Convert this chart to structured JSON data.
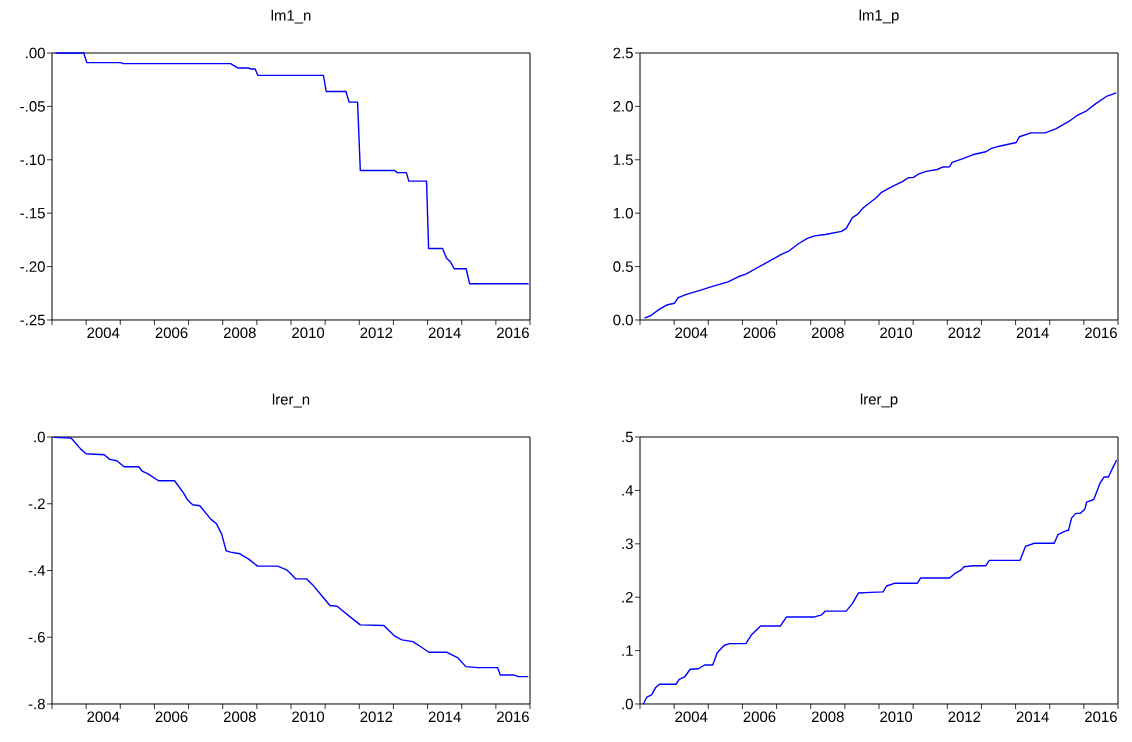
{
  "chart_data": [
    {
      "type": "line",
      "title": "lm1_n",
      "color": "#0000ff",
      "xlim": [
        2003,
        2017
      ],
      "ylim": [
        -0.25,
        0
      ],
      "xticks": [
        {
          "value": 2003,
          "label": null
        },
        {
          "value": 2004,
          "label": null
        },
        {
          "value": 2005,
          "label": null
        },
        {
          "value": 2006,
          "label": null
        },
        {
          "value": 2007,
          "label": null
        },
        {
          "value": 2008,
          "label": null
        },
        {
          "value": 2009,
          "label": null
        },
        {
          "value": 2010,
          "label": null
        },
        {
          "value": 2011,
          "label": null
        },
        {
          "value": 2012,
          "label": null
        },
        {
          "value": 2013,
          "label": null
        },
        {
          "value": 2014,
          "label": null
        },
        {
          "value": 2015,
          "label": null
        },
        {
          "value": 2016,
          "label": null
        },
        {
          "value": 2017,
          "label": null
        },
        {
          "value": 2004.5,
          "label": "2004"
        },
        {
          "value": 2006.5,
          "label": "2006"
        },
        {
          "value": 2008.5,
          "label": "2008"
        },
        {
          "value": 2010.5,
          "label": "2010"
        },
        {
          "value": 2012.5,
          "label": "2012"
        },
        {
          "value": 2014.5,
          "label": "2014"
        },
        {
          "value": 2016.5,
          "label": "2016"
        }
      ],
      "yticks": [
        {
          "value": 0,
          "label": ".00"
        },
        {
          "value": -0.05,
          "label": "-.05"
        },
        {
          "value": -0.1,
          "label": "-.10"
        },
        {
          "value": -0.15,
          "label": "-.15"
        },
        {
          "value": -0.2,
          "label": "-.20"
        },
        {
          "value": -0.25,
          "label": "-.25"
        }
      ],
      "x": [
        2003.1,
        2003.93,
        2004.02,
        2005.0,
        2005.1,
        2008.23,
        2008.44,
        2008.76,
        2008.83,
        2008.95,
        2009.03,
        2010.95,
        2011.03,
        2011.61,
        2011.7,
        2011.95,
        2012.03,
        2013.04,
        2013.11,
        2013.38,
        2013.45,
        2013.97,
        2014.03,
        2014.44,
        2014.55,
        2014.68,
        2014.78,
        2015.13,
        2015.23,
        2016.96
      ],
      "values": [
        0,
        0,
        -0.009,
        -0.009,
        -0.01,
        -0.01,
        -0.014,
        -0.014,
        -0.015,
        -0.015,
        -0.021,
        -0.021,
        -0.036,
        -0.036,
        -0.046,
        -0.046,
        -0.11,
        -0.11,
        -0.112,
        -0.112,
        -0.12,
        -0.12,
        -0.183,
        -0.183,
        -0.192,
        -0.196,
        -0.202,
        -0.202,
        -0.216,
        -0.216
      ]
    },
    {
      "type": "line",
      "title": "lm1_p",
      "color": "#0000ff",
      "xlim": [
        2003,
        2017
      ],
      "ylim": [
        0,
        2.5
      ],
      "xticks": [
        {
          "value": 2003,
          "label": null
        },
        {
          "value": 2004,
          "label": null
        },
        {
          "value": 2005,
          "label": null
        },
        {
          "value": 2006,
          "label": null
        },
        {
          "value": 2007,
          "label": null
        },
        {
          "value": 2008,
          "label": null
        },
        {
          "value": 2009,
          "label": null
        },
        {
          "value": 2010,
          "label": null
        },
        {
          "value": 2011,
          "label": null
        },
        {
          "value": 2012,
          "label": null
        },
        {
          "value": 2013,
          "label": null
        },
        {
          "value": 2014,
          "label": null
        },
        {
          "value": 2015,
          "label": null
        },
        {
          "value": 2016,
          "label": null
        },
        {
          "value": 2017,
          "label": null
        },
        {
          "value": 2004.5,
          "label": "2004"
        },
        {
          "value": 2006.5,
          "label": "2006"
        },
        {
          "value": 2008.5,
          "label": "2008"
        },
        {
          "value": 2010.5,
          "label": "2010"
        },
        {
          "value": 2012.5,
          "label": "2012"
        },
        {
          "value": 2014.5,
          "label": "2014"
        },
        {
          "value": 2016.5,
          "label": "2016"
        }
      ],
      "yticks": [
        {
          "value": 0,
          "label": "0.0"
        },
        {
          "value": 0.5,
          "label": "0.5"
        },
        {
          "value": 1,
          "label": "1.0"
        },
        {
          "value": 1.5,
          "label": "1.5"
        },
        {
          "value": 2,
          "label": "2.0"
        },
        {
          "value": 2.5,
          "label": "2.5"
        }
      ],
      "x": [
        2003.13,
        2003.31,
        2003.55,
        2003.78,
        2004.01,
        2004.12,
        2004.36,
        2004.78,
        2005.05,
        2005.58,
        2005.89,
        2006.1,
        2006.63,
        2007.14,
        2007.37,
        2007.64,
        2007.9,
        2008.11,
        2008.43,
        2008.9,
        2009.04,
        2009.22,
        2009.38,
        2009.54,
        2009.91,
        2010.06,
        2010.38,
        2010.7,
        2010.86,
        2011.01,
        2011.15,
        2011.38,
        2011.7,
        2011.86,
        2012.07,
        2012.14,
        2012.44,
        2012.76,
        2013.13,
        2013.28,
        2013.49,
        2014.02,
        2014.11,
        2014.45,
        2014.87,
        2015.19,
        2015.56,
        2015.82,
        2016.08,
        2016.35,
        2016.66,
        2016.95
      ],
      "values": [
        0.017,
        0.04,
        0.097,
        0.14,
        0.157,
        0.21,
        0.24,
        0.28,
        0.307,
        0.357,
        0.407,
        0.43,
        0.524,
        0.614,
        0.648,
        0.714,
        0.764,
        0.788,
        0.8,
        0.83,
        0.858,
        0.958,
        0.991,
        1.051,
        1.142,
        1.192,
        1.248,
        1.298,
        1.332,
        1.335,
        1.365,
        1.392,
        1.409,
        1.432,
        1.435,
        1.475,
        1.508,
        1.549,
        1.575,
        1.605,
        1.625,
        1.662,
        1.716,
        1.752,
        1.752,
        1.792,
        1.859,
        1.919,
        1.959,
        2.026,
        2.093,
        2.126
      ]
    },
    {
      "type": "line",
      "title": "lrer_n",
      "color": "#0000ff",
      "xlim": [
        2003,
        2017
      ],
      "ylim": [
        -0.8,
        0
      ],
      "xticks": [
        {
          "value": 2003,
          "label": null
        },
        {
          "value": 2004,
          "label": null
        },
        {
          "value": 2005,
          "label": null
        },
        {
          "value": 2006,
          "label": null
        },
        {
          "value": 2007,
          "label": null
        },
        {
          "value": 2008,
          "label": null
        },
        {
          "value": 2009,
          "label": null
        },
        {
          "value": 2010,
          "label": null
        },
        {
          "value": 2011,
          "label": null
        },
        {
          "value": 2012,
          "label": null
        },
        {
          "value": 2013,
          "label": null
        },
        {
          "value": 2014,
          "label": null
        },
        {
          "value": 2015,
          "label": null
        },
        {
          "value": 2016,
          "label": null
        },
        {
          "value": 2017,
          "label": null
        },
        {
          "value": 2004.5,
          "label": "2004"
        },
        {
          "value": 2006.5,
          "label": "2006"
        },
        {
          "value": 2008.5,
          "label": "2008"
        },
        {
          "value": 2010.5,
          "label": "2010"
        },
        {
          "value": 2012.5,
          "label": "2012"
        },
        {
          "value": 2014.5,
          "label": "2014"
        },
        {
          "value": 2016.5,
          "label": "2016"
        }
      ],
      "yticks": [
        {
          "value": 0,
          "label": ".0"
        },
        {
          "value": -0.2,
          "label": "-.2"
        },
        {
          "value": -0.4,
          "label": "-.4"
        },
        {
          "value": -0.6,
          "label": "-.6"
        },
        {
          "value": -0.8,
          "label": "-.8"
        }
      ],
      "x": [
        2003.05,
        2003.56,
        2003.85,
        2004.0,
        2004.53,
        2004.69,
        2004.9,
        2005.11,
        2005.54,
        2005.64,
        2005.8,
        2006.12,
        2006.59,
        2006.86,
        2006.96,
        2007.12,
        2007.33,
        2007.65,
        2007.81,
        2007.97,
        2008.1,
        2008.23,
        2008.5,
        2008.76,
        2009.02,
        2009.61,
        2009.87,
        2010.01,
        2010.13,
        2010.45,
        2010.66,
        2010.92,
        2011.14,
        2011.35,
        2011.77,
        2012.03,
        2012.72,
        2013.04,
        2013.25,
        2013.57,
        2013.78,
        2014.04,
        2014.57,
        2014.89,
        2015.12,
        2015.47,
        2016.05,
        2016.13,
        2016.52,
        2016.66,
        2016.95
      ],
      "values": [
        -0.001,
        -0.003,
        -0.037,
        -0.05,
        -0.053,
        -0.067,
        -0.071,
        -0.089,
        -0.089,
        -0.102,
        -0.11,
        -0.131,
        -0.131,
        -0.169,
        -0.187,
        -0.203,
        -0.206,
        -0.246,
        -0.259,
        -0.291,
        -0.341,
        -0.345,
        -0.35,
        -0.366,
        -0.387,
        -0.387,
        -0.398,
        -0.411,
        -0.425,
        -0.425,
        -0.446,
        -0.478,
        -0.505,
        -0.507,
        -0.542,
        -0.563,
        -0.565,
        -0.597,
        -0.608,
        -0.613,
        -0.627,
        -0.645,
        -0.645,
        -0.662,
        -0.688,
        -0.691,
        -0.691,
        -0.713,
        -0.713,
        -0.718,
        -0.718
      ]
    },
    {
      "type": "line",
      "title": "lrer_p",
      "color": "#0000ff",
      "xlim": [
        2003,
        2017
      ],
      "ylim": [
        0,
        0.5
      ],
      "xticks": [
        {
          "value": 2003,
          "label": null
        },
        {
          "value": 2004,
          "label": null
        },
        {
          "value": 2005,
          "label": null
        },
        {
          "value": 2006,
          "label": null
        },
        {
          "value": 2007,
          "label": null
        },
        {
          "value": 2008,
          "label": null
        },
        {
          "value": 2009,
          "label": null
        },
        {
          "value": 2010,
          "label": null
        },
        {
          "value": 2011,
          "label": null
        },
        {
          "value": 2012,
          "label": null
        },
        {
          "value": 2013,
          "label": null
        },
        {
          "value": 2014,
          "label": null
        },
        {
          "value": 2015,
          "label": null
        },
        {
          "value": 2016,
          "label": null
        },
        {
          "value": 2017,
          "label": null
        },
        {
          "value": 2004.5,
          "label": "2004"
        },
        {
          "value": 2006.5,
          "label": "2006"
        },
        {
          "value": 2008.5,
          "label": "2008"
        },
        {
          "value": 2010.5,
          "label": "2010"
        },
        {
          "value": 2012.5,
          "label": "2012"
        },
        {
          "value": 2014.5,
          "label": "2014"
        },
        {
          "value": 2016.5,
          "label": "2016"
        }
      ],
      "yticks": [
        {
          "value": 0,
          "label": ".0"
        },
        {
          "value": 0.1,
          "label": ".1"
        },
        {
          "value": 0.2,
          "label": ".2"
        },
        {
          "value": 0.3,
          "label": ".3"
        },
        {
          "value": 0.4,
          "label": ".4"
        },
        {
          "value": 0.5,
          "label": ".5"
        }
      ],
      "x": [
        2003.1,
        2003.2,
        2003.34,
        2003.46,
        2003.57,
        2004.05,
        2004.15,
        2004.31,
        2004.47,
        2004.71,
        2004.89,
        2005.13,
        2005.26,
        2005.47,
        2005.63,
        2006.1,
        2006.26,
        2006.53,
        2007.11,
        2007.29,
        2008.11,
        2008.32,
        2008.43,
        2009.04,
        2009.22,
        2009.4,
        2009.75,
        2010.12,
        2010.22,
        2010.45,
        2011.12,
        2011.22,
        2012.07,
        2012.23,
        2012.39,
        2012.49,
        2012.76,
        2013.13,
        2013.23,
        2014.13,
        2014.29,
        2014.55,
        2015.13,
        2015.24,
        2015.5,
        2015.55,
        2015.64,
        2015.76,
        2015.9,
        2016.03,
        2016.08,
        2016.29,
        2016.47,
        2016.59,
        2016.72,
        2016.82,
        2016.96
      ],
      "values": [
        0.0,
        0.013,
        0.017,
        0.031,
        0.037,
        0.037,
        0.046,
        0.051,
        0.065,
        0.066,
        0.073,
        0.073,
        0.096,
        0.11,
        0.113,
        0.113,
        0.129,
        0.146,
        0.146,
        0.163,
        0.163,
        0.167,
        0.174,
        0.174,
        0.188,
        0.208,
        0.209,
        0.21,
        0.221,
        0.226,
        0.226,
        0.236,
        0.236,
        0.245,
        0.25,
        0.257,
        0.259,
        0.259,
        0.269,
        0.269,
        0.295,
        0.301,
        0.301,
        0.317,
        0.325,
        0.325,
        0.348,
        0.357,
        0.357,
        0.365,
        0.378,
        0.383,
        0.413,
        0.425,
        0.425,
        0.439,
        0.457
      ]
    }
  ]
}
